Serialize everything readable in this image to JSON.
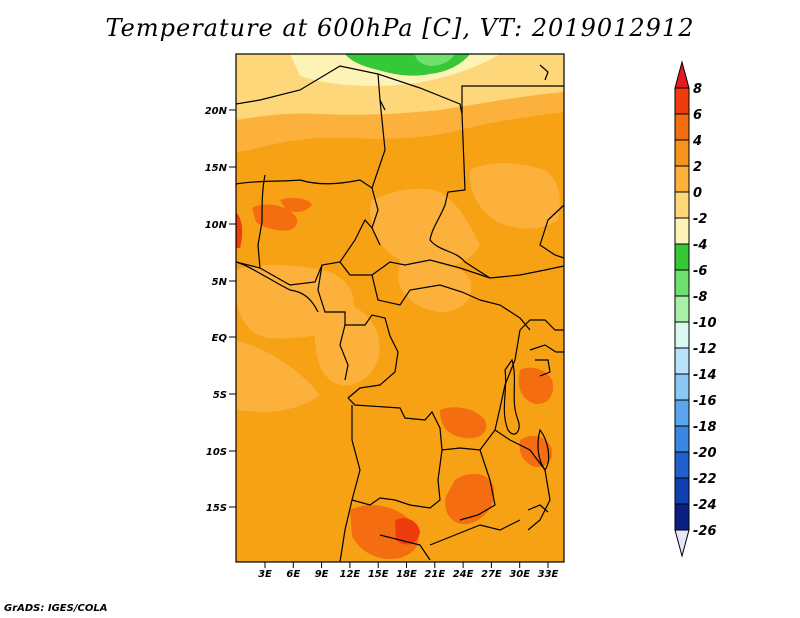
{
  "title": "Temperature at 600hPa [C], VT: 2019012912",
  "credit": "GrADS: IGES/COLA",
  "map": {
    "lat_labels": [
      "20N",
      "15N",
      "10N",
      "5N",
      "EQ",
      "5S",
      "10S",
      "15S"
    ],
    "lon_labels": [
      "3E",
      "6E",
      "9E",
      "12E",
      "15E",
      "18E",
      "21E",
      "24E",
      "27E",
      "30E",
      "33E"
    ]
  },
  "colorbar": {
    "labels": [
      "8",
      "6",
      "4",
      "2",
      "0",
      "-2",
      "-4",
      "-6",
      "-8",
      "-10",
      "-12",
      "-14",
      "-16",
      "-18",
      "-20",
      "-22",
      "-24",
      "-26"
    ],
    "colors": [
      "#e41a1c",
      "#f03b0c",
      "#f46d10",
      "#f7941d",
      "#fbb13c",
      "#fdd77a",
      "#fdf3b6",
      "#37c837",
      "#6ee06e",
      "#a8f0a8",
      "#d8f8f0",
      "#b8e2fa",
      "#8cc8f5",
      "#5aa6ee",
      "#3a86e2",
      "#2060cc",
      "#1040b0",
      "#0a1f80",
      "#07075a",
      "#e6e6fa"
    ]
  },
  "colors": {
    "background": "#ffffff",
    "dominant_field": "#f7a214"
  }
}
